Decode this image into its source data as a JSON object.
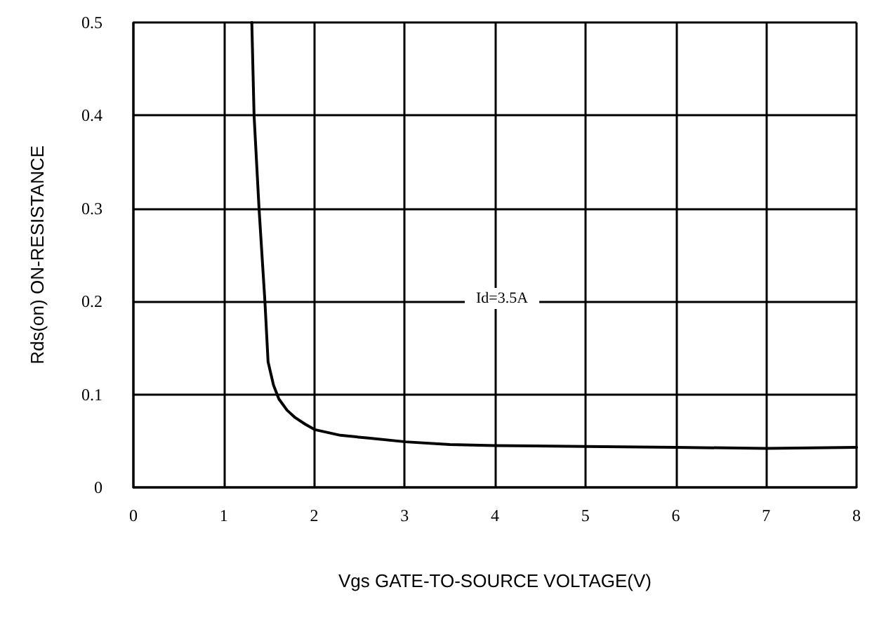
{
  "chart_data": {
    "type": "line",
    "xlabel": "Vgs GATE-TO-SOURCE VOLTAGE(V)",
    "ylabel": "Rds(on) ON-RESISTANCE",
    "annotations": [
      "Id=3.5A"
    ],
    "series": [
      {
        "color": "#000000",
        "x": [
          1.31,
          1.335,
          1.39,
          1.455,
          1.49,
          1.55,
          1.61,
          1.7,
          1.79,
          1.9,
          2.01,
          2.29,
          2.6,
          3.01,
          3.5,
          4,
          5,
          6,
          7,
          8
        ],
        "values": [
          0.5,
          0.4,
          0.3,
          0.2,
          0.135,
          0.11,
          0.095,
          0.083,
          0.075,
          0.068,
          0.062,
          0.056,
          0.053,
          0.049,
          0.046,
          0.045,
          0.044,
          0.043,
          0.042,
          0.043
        ]
      }
    ],
    "xlim": [
      0,
      8
    ],
    "xticks": [
      0,
      1,
      2,
      3,
      4,
      5,
      6,
      7,
      8
    ],
    "ylim": [
      0,
      0.5
    ],
    "yticks": [
      0,
      0.1,
      0.2,
      0.3,
      0.4,
      0.5
    ],
    "grid": true,
    "marker": "none",
    "line_style": "solid"
  }
}
